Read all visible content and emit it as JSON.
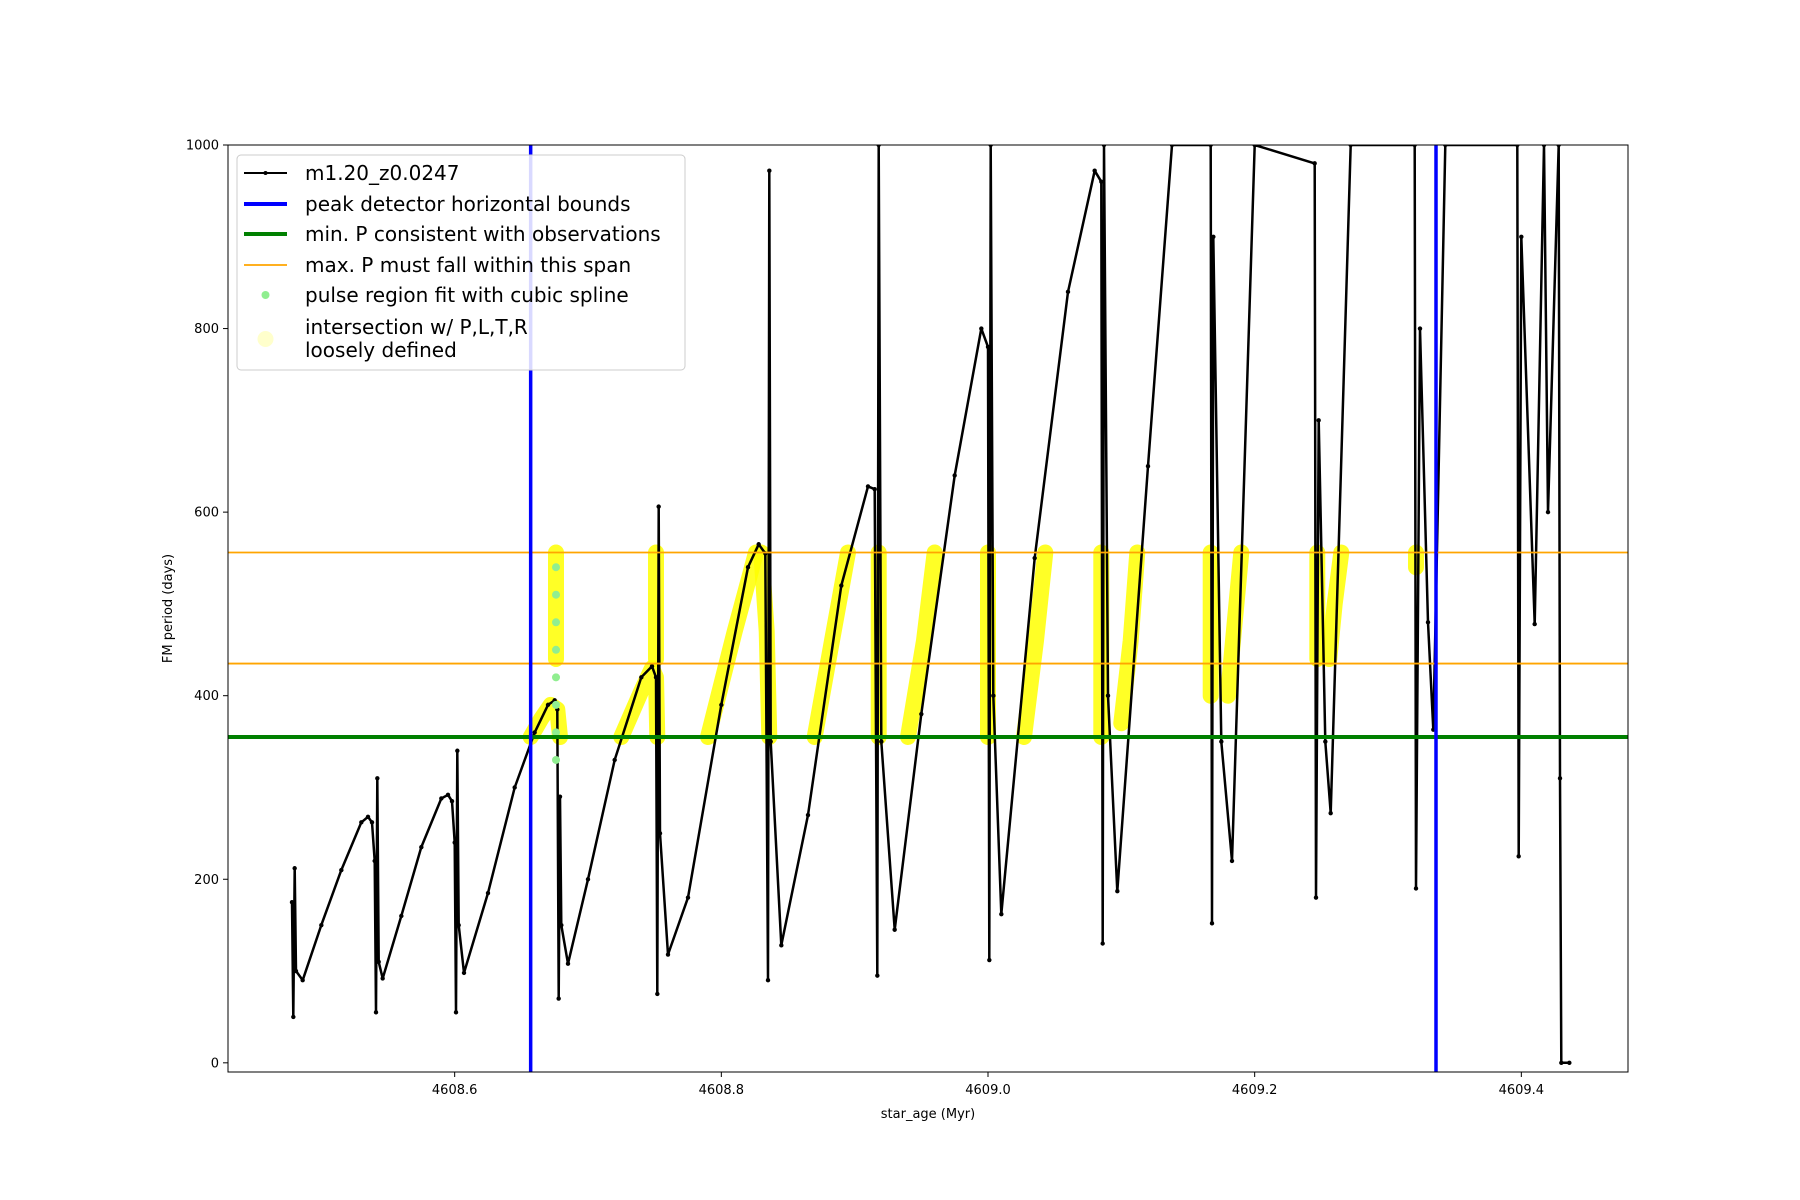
{
  "chart_data": {
    "type": "line",
    "title": "",
    "xlabel": "star_age (Myr)",
    "ylabel": "FM period (days)",
    "xlim": [
      4608.43,
      4609.48
    ],
    "ylim": [
      -10,
      1000
    ],
    "x_ticks": [
      4608.6,
      4608.8,
      4609.0,
      4609.2,
      4609.4
    ],
    "x_tick_labels": [
      "4608.6",
      "4608.8",
      "4609.0",
      "4609.2",
      "4609.4"
    ],
    "y_ticks": [
      0,
      200,
      400,
      600,
      800,
      1000
    ],
    "y_tick_labels": [
      "0",
      "200",
      "400",
      "600",
      "800",
      "1000"
    ],
    "grid": false,
    "legend_position": "upper-left",
    "colors": {
      "series": "#000000",
      "peak_bounds": "#0000ff",
      "min_p": "#008000",
      "max_p_span": "#ffa500",
      "spline": "#90ee90",
      "intersection": "#ffff00"
    },
    "legend": [
      {
        "label": "m1.20_z0.0247",
        "kind": "line-marker",
        "color": "#000000"
      },
      {
        "label": "peak detector horizontal bounds",
        "kind": "line",
        "color": "#0000ff"
      },
      {
        "label": "min. P consistent with observations",
        "kind": "line",
        "color": "#008000"
      },
      {
        "label": "max. P must fall within this span",
        "kind": "line-thin",
        "color": "#ffa500"
      },
      {
        "label": "pulse region fit with cubic spline",
        "kind": "dot",
        "color": "#90ee90"
      },
      {
        "label": "intersection w/ P,L,T,R",
        "label2": "loosely defined",
        "kind": "dot-big",
        "color": "#ffffcc"
      }
    ],
    "peak_detector_bounds_x": [
      4608.657,
      4609.336
    ],
    "min_p": 355,
    "max_p_span": [
      435,
      556
    ],
    "series": [
      {
        "name": "m1.20_z0.0247",
        "points": [
          [
            4608.478,
            175
          ],
          [
            4608.479,
            50
          ],
          [
            4608.48,
            212
          ],
          [
            4608.481,
            100
          ],
          [
            4608.486,
            90
          ],
          [
            4608.5,
            150
          ],
          [
            4608.515,
            210
          ],
          [
            4608.53,
            262
          ],
          [
            4608.535,
            268
          ],
          [
            4608.538,
            262
          ],
          [
            4608.54,
            220
          ],
          [
            4608.541,
            55
          ],
          [
            4608.542,
            310
          ],
          [
            4608.543,
            110
          ],
          [
            4608.546,
            92
          ],
          [
            4608.56,
            160
          ],
          [
            4608.575,
            235
          ],
          [
            4608.59,
            288
          ],
          [
            4608.595,
            292
          ],
          [
            4608.598,
            285
          ],
          [
            4608.6,
            240
          ],
          [
            4608.601,
            55
          ],
          [
            4608.602,
            340
          ],
          [
            4608.603,
            150
          ],
          [
            4608.607,
            98
          ],
          [
            4608.625,
            185
          ],
          [
            4608.645,
            300
          ],
          [
            4608.66,
            360
          ],
          [
            4608.67,
            390
          ],
          [
            4608.675,
            395
          ],
          [
            4608.677,
            385
          ],
          [
            4608.678,
            70
          ],
          [
            4608.679,
            290
          ],
          [
            4608.68,
            150
          ],
          [
            4608.685,
            108
          ],
          [
            4608.7,
            200
          ],
          [
            4608.72,
            330
          ],
          [
            4608.74,
            420
          ],
          [
            4608.748,
            432
          ],
          [
            4608.751,
            420
          ],
          [
            4608.752,
            75
          ],
          [
            4608.753,
            606
          ],
          [
            4608.754,
            250
          ],
          [
            4608.76,
            118
          ],
          [
            4608.775,
            180
          ],
          [
            4608.8,
            390
          ],
          [
            4608.82,
            540
          ],
          [
            4608.828,
            565
          ],
          [
            4608.833,
            555
          ],
          [
            4608.835,
            90
          ],
          [
            4608.836,
            972
          ],
          [
            4608.837,
            350
          ],
          [
            4608.845,
            128
          ],
          [
            4608.865,
            270
          ],
          [
            4608.89,
            520
          ],
          [
            4608.91,
            628
          ],
          [
            4608.915,
            625
          ],
          [
            4608.917,
            95
          ],
          [
            4608.918,
            1000
          ],
          [
            4608.92,
            350
          ],
          [
            4608.93,
            145
          ],
          [
            4608.95,
            380
          ],
          [
            4608.975,
            640
          ],
          [
            4608.995,
            800
          ],
          [
            4609.0,
            780
          ],
          [
            4609.001,
            112
          ],
          [
            4609.002,
            1000
          ],
          [
            4609.004,
            400
          ],
          [
            4609.01,
            162
          ],
          [
            4609.035,
            550
          ],
          [
            4609.06,
            840
          ],
          [
            4609.08,
            972
          ],
          [
            4609.085,
            960
          ],
          [
            4609.086,
            130
          ],
          [
            4609.087,
            1000
          ],
          [
            4609.09,
            400
          ],
          [
            4609.097,
            187
          ],
          [
            4609.12,
            650
          ],
          [
            4609.138,
            1000
          ],
          [
            4609.167,
            1000
          ],
          [
            4609.168,
            152
          ],
          [
            4609.169,
            900
          ],
          [
            4609.175,
            350
          ],
          [
            4609.183,
            220
          ],
          [
            4609.2,
            1000
          ],
          [
            4609.245,
            980
          ],
          [
            4609.246,
            180
          ],
          [
            4609.248,
            700
          ],
          [
            4609.253,
            350
          ],
          [
            4609.257,
            272
          ],
          [
            4609.272,
            1000
          ],
          [
            4609.32,
            1000
          ],
          [
            4609.321,
            190
          ],
          [
            4609.324,
            800
          ],
          [
            4609.33,
            480
          ],
          [
            4609.334,
            363
          ],
          [
            4609.343,
            1000
          ],
          [
            4609.397,
            1000
          ],
          [
            4609.398,
            225
          ],
          [
            4609.4,
            900
          ],
          [
            4609.41,
            478
          ],
          [
            4609.417,
            1000
          ],
          [
            4609.42,
            600
          ],
          [
            4609.428,
            1000
          ],
          [
            4609.429,
            310
          ],
          [
            4609.43,
            0
          ],
          [
            4609.436,
            0
          ]
        ]
      },
      {
        "name": "spline-fit",
        "points": [
          [
            4608.676,
            330
          ],
          [
            4608.676,
            360
          ],
          [
            4608.676,
            390
          ],
          [
            4608.676,
            420
          ],
          [
            4608.676,
            450
          ],
          [
            4608.676,
            480
          ],
          [
            4608.676,
            510
          ],
          [
            4608.676,
            540
          ]
        ]
      }
    ],
    "intersection_segments": [
      [
        [
          4608.657,
          355
        ],
        [
          4608.665,
          375
        ],
        [
          4608.672,
          390
        ],
        [
          4608.677,
          385
        ],
        [
          4608.679,
          355
        ]
      ],
      [
        [
          4608.676,
          440
        ],
        [
          4608.676,
          556
        ]
      ],
      [
        [
          4608.725,
          355
        ],
        [
          4608.74,
          405
        ],
        [
          4608.748,
          430
        ],
        [
          4608.751,
          420
        ],
        [
          4608.752,
          355
        ]
      ],
      [
        [
          4608.751,
          440
        ],
        [
          4608.751,
          556
        ]
      ],
      [
        [
          4608.79,
          355
        ],
        [
          4608.81,
          470
        ],
        [
          4608.826,
          556
        ]
      ],
      [
        [
          4608.83,
          556
        ],
        [
          4608.834,
          470
        ],
        [
          4608.836,
          355
        ]
      ],
      [
        [
          4608.87,
          355
        ],
        [
          4608.883,
          460
        ],
        [
          4608.895,
          556
        ]
      ],
      [
        [
          4608.918,
          355
        ],
        [
          4608.918,
          556
        ]
      ],
      [
        [
          4608.94,
          355
        ],
        [
          4608.952,
          460
        ],
        [
          4608.96,
          556
        ]
      ],
      [
        [
          4609.0,
          355
        ],
        [
          4609.0,
          556
        ]
      ],
      [
        [
          4609.027,
          355
        ],
        [
          4609.036,
          460
        ],
        [
          4609.043,
          556
        ]
      ],
      [
        [
          4609.085,
          355
        ],
        [
          4609.085,
          556
        ]
      ],
      [
        [
          4609.1,
          370
        ],
        [
          4609.107,
          460
        ],
        [
          4609.112,
          556
        ]
      ],
      [
        [
          4609.167,
          400
        ],
        [
          4609.167,
          556
        ]
      ],
      [
        [
          4609.18,
          400
        ],
        [
          4609.185,
          480
        ],
        [
          4609.19,
          556
        ]
      ],
      [
        [
          4609.247,
          440
        ],
        [
          4609.247,
          556
        ]
      ],
      [
        [
          4609.256,
          440
        ],
        [
          4609.26,
          500
        ],
        [
          4609.265,
          556
        ]
      ],
      [
        [
          4609.321,
          540
        ],
        [
          4609.321,
          556
        ]
      ]
    ]
  }
}
